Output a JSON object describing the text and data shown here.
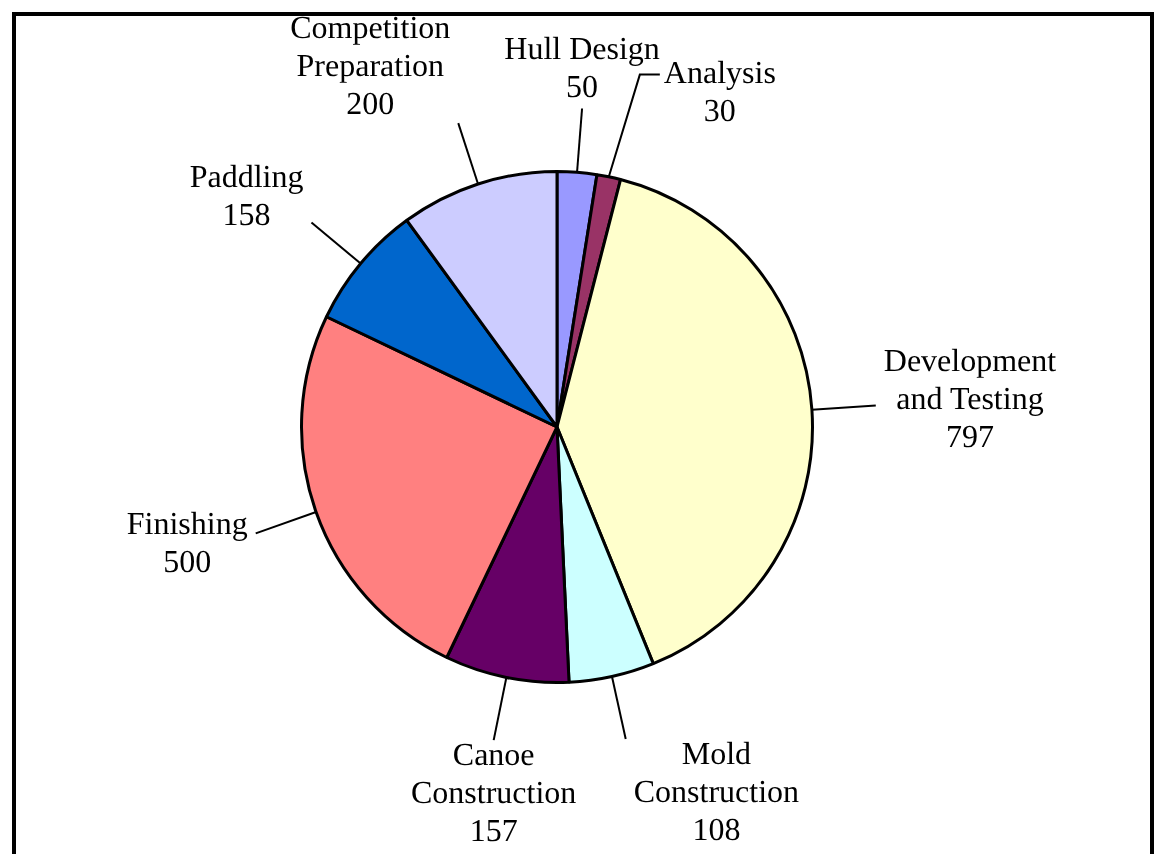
{
  "chart_data": {
    "type": "pie",
    "categories": [
      "Hull Design",
      "Analysis",
      "Development and Testing",
      "Mold Construction",
      "Canoe Construction",
      "Finishing",
      "Paddling",
      "Competition Preparation"
    ],
    "values": [
      50,
      30,
      797,
      108,
      157,
      500,
      158,
      200
    ],
    "colors": [
      "#9999ff",
      "#993366",
      "#ffffcc",
      "#ccffff",
      "#660066",
      "#ff8080",
      "#0066cc",
      "#ccccff"
    ],
    "data_labels": true,
    "legend": false
  }
}
